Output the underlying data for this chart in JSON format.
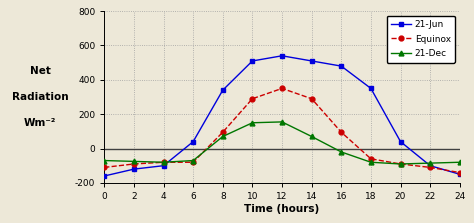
{
  "x_ticks": [
    0,
    2,
    4,
    6,
    8,
    10,
    12,
    14,
    16,
    18,
    20,
    22,
    24
  ],
  "jun_x": [
    0,
    2,
    4,
    6,
    8,
    10,
    12,
    14,
    16,
    18,
    20,
    22,
    24
  ],
  "jun_y": [
    -160,
    -120,
    -100,
    40,
    340,
    510,
    540,
    510,
    480,
    350,
    40,
    -100,
    -150
  ],
  "equinox_x": [
    0,
    2,
    4,
    6,
    8,
    10,
    12,
    14,
    16,
    18,
    20,
    22,
    24
  ],
  "equinox_y": [
    -110,
    -90,
    -80,
    -80,
    95,
    290,
    350,
    290,
    95,
    -60,
    -90,
    -110,
    -140
  ],
  "dec_x": [
    0,
    2,
    4,
    6,
    8,
    10,
    12,
    14,
    16,
    18,
    20,
    22,
    24
  ],
  "dec_y": [
    -70,
    -75,
    -80,
    -70,
    70,
    150,
    155,
    70,
    -20,
    -80,
    -90,
    -85,
    -80
  ],
  "ylim": [
    -200,
    800
  ],
  "yticks": [
    -200,
    0,
    200,
    400,
    600,
    800
  ],
  "ytick_labels": [
    "-200",
    "0",
    "200",
    "400",
    "600",
    "800"
  ],
  "xlabel": "Time (hours)",
  "ylabel_line1": "Net",
  "ylabel_line2": "Radiation",
  "ylabel_line3": "Wm⁻²",
  "background_color": "#ede8d8",
  "grid_color": "#a0a0a0",
  "jun_color": "#0000dd",
  "equinox_color": "#cc0000",
  "dec_color": "#007700",
  "legend_labels": [
    "21-Jun",
    "Equinox",
    "21-Dec"
  ]
}
